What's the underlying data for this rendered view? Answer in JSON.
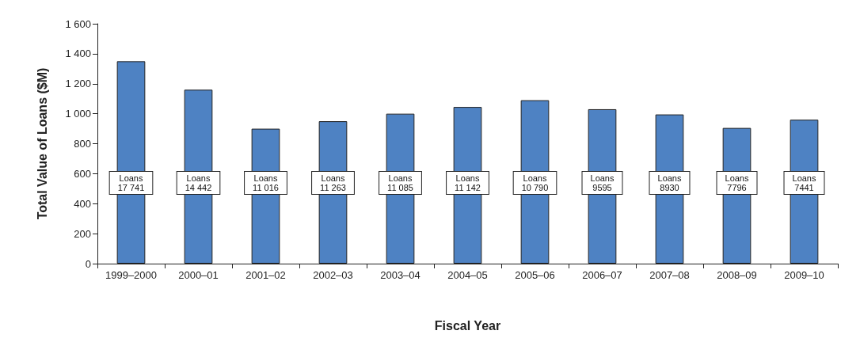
{
  "chart_data": {
    "type": "bar",
    "xlabel": "Fiscal Year",
    "ylabel": "Total Value of Loans ($M)",
    "categories": [
      "1999–2000",
      "2000–01",
      "2001–02",
      "2002–03",
      "2003–04",
      "2004–05",
      "2005–06",
      "2006–07",
      "2007–08",
      "2008–09",
      "2009–10"
    ],
    "values": [
      1350,
      1160,
      900,
      950,
      1000,
      1045,
      1090,
      1030,
      995,
      905,
      960
    ],
    "color": "#4e82c3",
    "ylim": [
      0,
      1600
    ],
    "yticks": [
      0,
      200,
      400,
      600,
      800,
      {
        "value": 1000,
        "label": "1 000"
      },
      {
        "value": 1200,
        "label": "1 200"
      },
      {
        "value": 1400,
        "label": "1 400"
      },
      {
        "value": 1600,
        "label": "1 600"
      }
    ],
    "grid": false,
    "annotations": [
      "Loans\n17 741",
      "Loans\n14 442",
      "Loans\n11 016",
      "Loans\n11 263",
      "Loans\n11 085",
      "Loans\n11 142",
      "Loans\n10 790",
      "Loans\n9595",
      "Loans\n8930",
      "Loans\n7796",
      "Loans\n7441"
    ]
  }
}
